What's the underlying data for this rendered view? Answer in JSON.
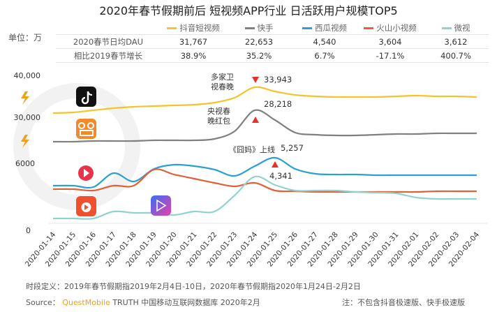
{
  "chart_data": {
    "type": "line",
    "title": "2020年春节假期前后 短视频APP行业 日活跃用户规模TOP5",
    "unit_label": "单位：万",
    "y_ticks": [
      "40,000",
      "30,000",
      "6000",
      "0"
    ],
    "y_axis_broken": true,
    "grid": false,
    "legend_placement": "top",
    "x": [
      "2020-01-14",
      "2020-01-15",
      "2020-01-16",
      "2020-01-17",
      "2020-01-18",
      "2020-01-19",
      "2020-01-20",
      "2020-01-21",
      "2020-01-22",
      "2020-01-23",
      "2020-01-24",
      "2020-01-25",
      "2020-01-26",
      "2020-01-27",
      "2020-01-28",
      "2020-01-29",
      "2020-01-30",
      "2020-01-31",
      "2020-02-01",
      "2020-02-02",
      "2020-02-03",
      "2020-02-04"
    ],
    "series": [
      {
        "name": "抖音短视频",
        "color": "#f5c32c",
        "segment": "upper",
        "values": [
          27523,
          27697,
          28218,
          28738,
          29085,
          29259,
          29432,
          29606,
          30126,
          31340,
          33943,
          32902,
          32035,
          31688,
          31514,
          31514,
          31514,
          31688,
          31861,
          31688,
          31688,
          31514
        ]
      },
      {
        "name": "快手",
        "color": "#808080",
        "segment": "upper",
        "values": [
          20410,
          20410,
          20583,
          20583,
          20583,
          20757,
          20757,
          20757,
          21104,
          23013,
          28218,
          25789,
          22666,
          22145,
          21972,
          21972,
          22145,
          22319,
          22319,
          22492,
          22492,
          22492
        ]
      },
      {
        "name": "西瓜视频",
        "color": "#2a9fd6",
        "segment": "lower",
        "values": [
          3901,
          3901,
          3833,
          4511,
          4104,
          4715,
          4918,
          4850,
          4681,
          4376,
          4850,
          5257,
          4715,
          4477,
          4443,
          4443,
          4410,
          4410,
          4410,
          4410,
          4410,
          4410
        ]
      },
      {
        "name": "火山小视频",
        "color": "#e0603a",
        "segment": "lower",
        "values": [
          3732,
          3732,
          3664,
          3901,
          3901,
          4681,
          4443,
          4240,
          4037,
          3867,
          4037,
          3664,
          3630,
          3596,
          3596,
          3596,
          3596,
          3596,
          3596,
          3630,
          3630,
          3630
        ]
      },
      {
        "name": "微视",
        "color": "#8fd3d0",
        "segment": "lower",
        "values": [
          2308,
          2308,
          2308,
          2647,
          2579,
          2579,
          2477,
          2647,
          2647,
          3426,
          4341,
          3935,
          3664,
          3664,
          3664,
          3596,
          3562,
          3529,
          3325,
          3257,
          3257,
          3257
        ]
      }
    ],
    "table": {
      "rows": [
        {
          "label": "2020春节日均DAU",
          "values": [
            "31,767",
            "22,653",
            "4,540",
            "3,604",
            "3,612"
          ]
        },
        {
          "label": "相比2019春节增长",
          "values": [
            "38.9%",
            "35.2%",
            "6.7%",
            "-17.1%",
            "400.7%"
          ]
        }
      ]
    },
    "annotations": [
      {
        "text": "多家卫视春晚",
        "line1": "多家卫",
        "line2": "视春晚",
        "value": "33,943"
      },
      {
        "line1": "央视春",
        "line2": "晚红包",
        "value": "28,218"
      },
      {
        "text": "《囧妈》上线",
        "value": "5,257"
      },
      {
        "value": "4,341"
      }
    ]
  },
  "footer": {
    "definition": "时段定义：2019年春节假期指2019年2月4日-10日，2020年春节假期指2020年1月24日-2月2日",
    "source_label": "Source：",
    "source_brand": "QuestMobile",
    "source_rest": "TRUTH 中国移动互联网数据库 2020年2月",
    "note": "注：不包含抖音极速版、快手极速版"
  },
  "watermark": "QUEST MOBILE",
  "icons": [
    "douyin-app-icon",
    "kuaishou-app-icon",
    "xigua-app-icon",
    "huoshan-app-icon",
    "weishi-app-icon",
    "lightning-icon"
  ]
}
